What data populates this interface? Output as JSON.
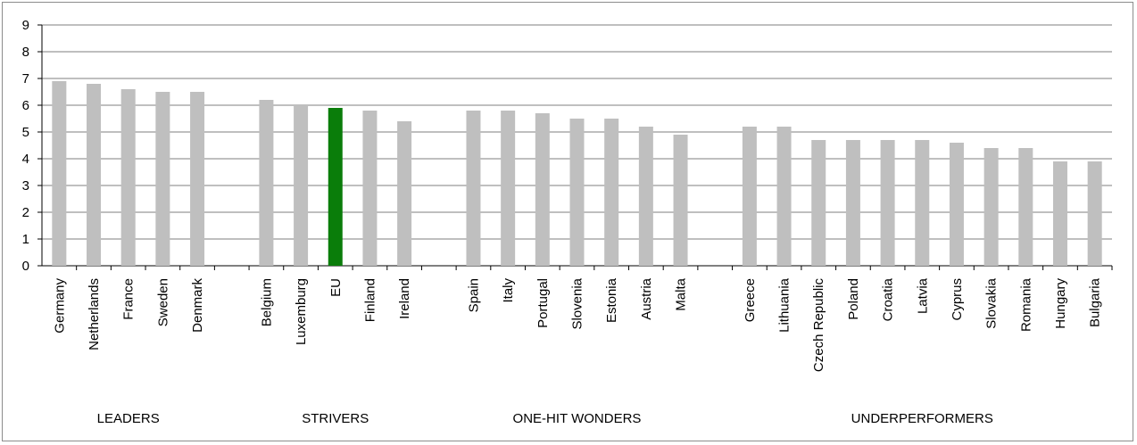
{
  "chart_data": {
    "type": "bar",
    "title": "",
    "xlabel": "",
    "ylabel": "",
    "ylim": [
      0,
      9
    ],
    "yticks": [
      0,
      1,
      2,
      3,
      4,
      5,
      6,
      7,
      8,
      9
    ],
    "grid": true,
    "legend": "none",
    "colors": {
      "bar": "#bfbfbf",
      "highlight": "#0a7d0a",
      "grid": "#7f7f7f"
    },
    "highlight_category": "EU",
    "groups": [
      {
        "name": "LEADERS",
        "categories": [
          "Germany",
          "Netherlands",
          "France",
          "Sweden",
          "Denmark"
        ],
        "values": [
          6.9,
          6.8,
          6.6,
          6.5,
          6.5
        ]
      },
      {
        "name": "STRIVERS",
        "categories": [
          "Belgium",
          "Luxemburg",
          "EU",
          "Finland",
          "Ireland"
        ],
        "values": [
          6.2,
          6.0,
          5.9,
          5.8,
          5.4
        ]
      },
      {
        "name": "ONE-HIT WONDERS",
        "categories": [
          "Spain",
          "Italy",
          "Portugal",
          "Slovenia",
          "Estonia",
          "Austria",
          "Malta"
        ],
        "values": [
          5.8,
          5.8,
          5.7,
          5.5,
          5.5,
          5.2,
          4.9
        ]
      },
      {
        "name": "UNDERPERFORMERS",
        "categories": [
          "Greece",
          "Lithuania",
          "Czech Republic",
          "Poland",
          "Croatia",
          "Latvia",
          "Cyprus",
          "Slovakia",
          "Romania",
          "Hungary",
          "Bulgaria"
        ],
        "values": [
          5.2,
          5.2,
          4.7,
          4.7,
          4.7,
          4.7,
          4.6,
          4.4,
          4.4,
          3.9,
          3.9
        ]
      }
    ]
  }
}
